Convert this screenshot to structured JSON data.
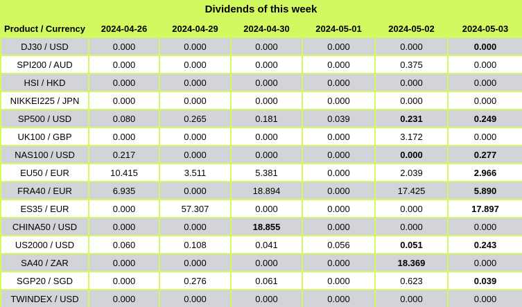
{
  "title": "Dividends of this week",
  "colors": {
    "background": "#d2f95f",
    "row_alternate": "#d3d4d9",
    "row_main": "#ffffff",
    "text": "#000000"
  },
  "table": {
    "product_header": "Product / Currency",
    "date_headers": [
      "2024-04-26",
      "2024-04-29",
      "2024-04-30",
      "2024-05-01",
      "2024-05-02",
      "2024-05-03"
    ],
    "rows": [
      {
        "product": "DJ30 / USD",
        "values": [
          "0.000",
          "0.000",
          "0.000",
          "0.000",
          "0.000",
          "0.000"
        ],
        "bold": [
          false,
          false,
          false,
          false,
          false,
          true
        ]
      },
      {
        "product": "SPI200 / AUD",
        "values": [
          "0.000",
          "0.000",
          "0.000",
          "0.000",
          "0.375",
          "0.000"
        ],
        "bold": [
          false,
          false,
          false,
          false,
          false,
          false
        ]
      },
      {
        "product": "HSI / HKD",
        "values": [
          "0.000",
          "0.000",
          "0.000",
          "0.000",
          "0.000",
          "0.000"
        ],
        "bold": [
          false,
          false,
          false,
          false,
          false,
          false
        ]
      },
      {
        "product": "NIKKEI225 / JPN",
        "values": [
          "0.000",
          "0.000",
          "0.000",
          "0.000",
          "0.000",
          "0.000"
        ],
        "bold": [
          false,
          false,
          false,
          false,
          false,
          false
        ]
      },
      {
        "product": "SP500 / USD",
        "values": [
          "0.080",
          "0.265",
          "0.181",
          "0.039",
          "0.231",
          "0.249"
        ],
        "bold": [
          false,
          false,
          false,
          false,
          true,
          true
        ]
      },
      {
        "product": "UK100 / GBP",
        "values": [
          "0.000",
          "0.000",
          "0.000",
          "0.000",
          "3.172",
          "0.000"
        ],
        "bold": [
          false,
          false,
          false,
          false,
          false,
          false
        ]
      },
      {
        "product": "NAS100 / USD",
        "values": [
          "0.217",
          "0.000",
          "0.000",
          "0.000",
          "0.000",
          "0.277"
        ],
        "bold": [
          false,
          false,
          false,
          false,
          true,
          true
        ]
      },
      {
        "product": "EU50 / EUR",
        "values": [
          "10.415",
          "3.511",
          "5.381",
          "0.000",
          "2.039",
          "2.966"
        ],
        "bold": [
          false,
          false,
          false,
          false,
          false,
          true
        ]
      },
      {
        "product": "FRA40 / EUR",
        "values": [
          "6.935",
          "0.000",
          "18.894",
          "0.000",
          "17.425",
          "5.890"
        ],
        "bold": [
          false,
          false,
          false,
          false,
          false,
          true
        ]
      },
      {
        "product": "ES35 / EUR",
        "values": [
          "0.000",
          "57.307",
          "0.000",
          "0.000",
          "0.000",
          "17.897"
        ],
        "bold": [
          false,
          false,
          false,
          false,
          false,
          true
        ]
      },
      {
        "product": "CHINA50 / USD",
        "values": [
          "0.000",
          "0.000",
          "18.855",
          "0.000",
          "0.000",
          "0.000"
        ],
        "bold": [
          false,
          false,
          true,
          false,
          false,
          false
        ]
      },
      {
        "product": "US2000 / USD",
        "values": [
          "0.060",
          "0.108",
          "0.041",
          "0.056",
          "0.051",
          "0.243"
        ],
        "bold": [
          false,
          false,
          false,
          false,
          true,
          true
        ]
      },
      {
        "product": "SA40 / ZAR",
        "values": [
          "0.000",
          "0.000",
          "0.000",
          "0.000",
          "18.369",
          "0.000"
        ],
        "bold": [
          false,
          false,
          false,
          false,
          true,
          false
        ]
      },
      {
        "product": "SGP20 / SGD",
        "values": [
          "0.000",
          "0.276",
          "0.061",
          "0.000",
          "0.623",
          "0.039"
        ],
        "bold": [
          false,
          false,
          false,
          false,
          false,
          true
        ]
      },
      {
        "product": "TWINDEX / USD",
        "values": [
          "0.000",
          "0.000",
          "0.000",
          "0.000",
          "0.000",
          "0.000"
        ],
        "bold": [
          false,
          false,
          false,
          false,
          false,
          false
        ]
      }
    ]
  },
  "chart_data": {
    "type": "table",
    "title": "Dividends of this week",
    "columns": [
      "Product / Currency",
      "2024-04-26",
      "2024-04-29",
      "2024-04-30",
      "2024-05-01",
      "2024-05-02",
      "2024-05-03"
    ],
    "rows": [
      [
        "DJ30 / USD",
        0.0,
        0.0,
        0.0,
        0.0,
        0.0,
        0.0
      ],
      [
        "SPI200 / AUD",
        0.0,
        0.0,
        0.0,
        0.0,
        0.375,
        0.0
      ],
      [
        "HSI / HKD",
        0.0,
        0.0,
        0.0,
        0.0,
        0.0,
        0.0
      ],
      [
        "NIKKEI225 / JPN",
        0.0,
        0.0,
        0.0,
        0.0,
        0.0,
        0.0
      ],
      [
        "SP500 / USD",
        0.08,
        0.265,
        0.181,
        0.039,
        0.231,
        0.249
      ],
      [
        "UK100 / GBP",
        0.0,
        0.0,
        0.0,
        0.0,
        3.172,
        0.0
      ],
      [
        "NAS100 / USD",
        0.217,
        0.0,
        0.0,
        0.0,
        0.0,
        0.277
      ],
      [
        "EU50 / EUR",
        10.415,
        3.511,
        5.381,
        0.0,
        2.039,
        2.966
      ],
      [
        "FRA40 / EUR",
        6.935,
        0.0,
        18.894,
        0.0,
        17.425,
        5.89
      ],
      [
        "ES35 / EUR",
        0.0,
        57.307,
        0.0,
        0.0,
        0.0,
        17.897
      ],
      [
        "CHINA50 / USD",
        0.0,
        0.0,
        18.855,
        0.0,
        0.0,
        0.0
      ],
      [
        "US2000 / USD",
        0.06,
        0.108,
        0.041,
        0.056,
        0.051,
        0.243
      ],
      [
        "SA40 / ZAR",
        0.0,
        0.0,
        0.0,
        0.0,
        18.369,
        0.0
      ],
      [
        "SGP20 / SGD",
        0.0,
        0.276,
        0.061,
        0.0,
        0.623,
        0.039
      ],
      [
        "TWINDEX / USD",
        0.0,
        0.0,
        0.0,
        0.0,
        0.0,
        0.0
      ]
    ]
  }
}
